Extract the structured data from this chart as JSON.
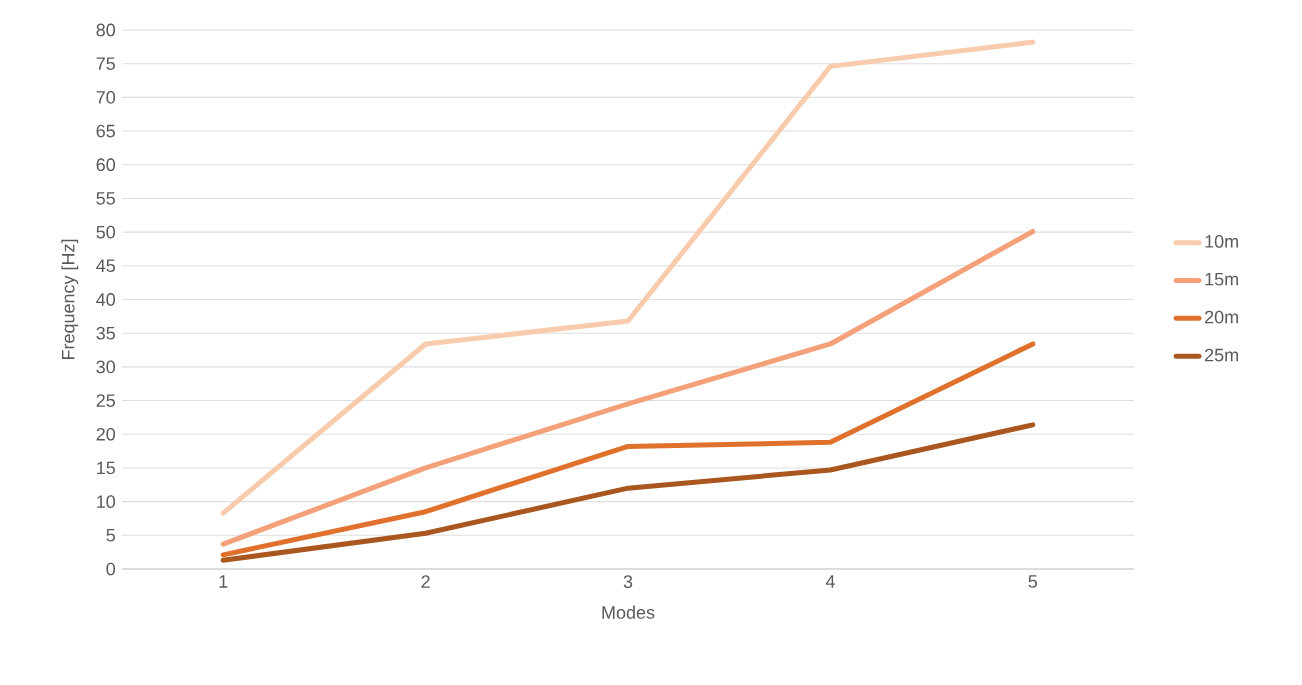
{
  "chart_data": {
    "type": "line",
    "xlabel": "Modes",
    "ylabel": "Frequency [Hz]",
    "categories": [
      "1",
      "2",
      "3",
      "4",
      "5"
    ],
    "series": [
      {
        "name": "10m",
        "color": "#f8cbad",
        "values": [
          8.3,
          33.4,
          36.8,
          74.6,
          78.2
        ]
      },
      {
        "name": "15m",
        "color": "#f4a078",
        "values": [
          3.7,
          15.0,
          24.5,
          33.4,
          50.1
        ]
      },
      {
        "name": "20m",
        "color": "#e0712c",
        "values": [
          2.1,
          8.5,
          18.2,
          18.8,
          33.4
        ]
      },
      {
        "name": "25m",
        "color": "#a9561f",
        "values": [
          1.3,
          5.3,
          12.0,
          14.7,
          21.4
        ]
      }
    ],
    "ylim": [
      0,
      80
    ],
    "yticks": [
      0,
      5,
      10,
      15,
      20,
      25,
      30,
      35,
      40,
      45,
      50,
      55,
      60,
      65,
      70,
      75,
      80
    ],
    "grid": "y",
    "legend": "right",
    "marker": "none",
    "line_style": "solid"
  }
}
